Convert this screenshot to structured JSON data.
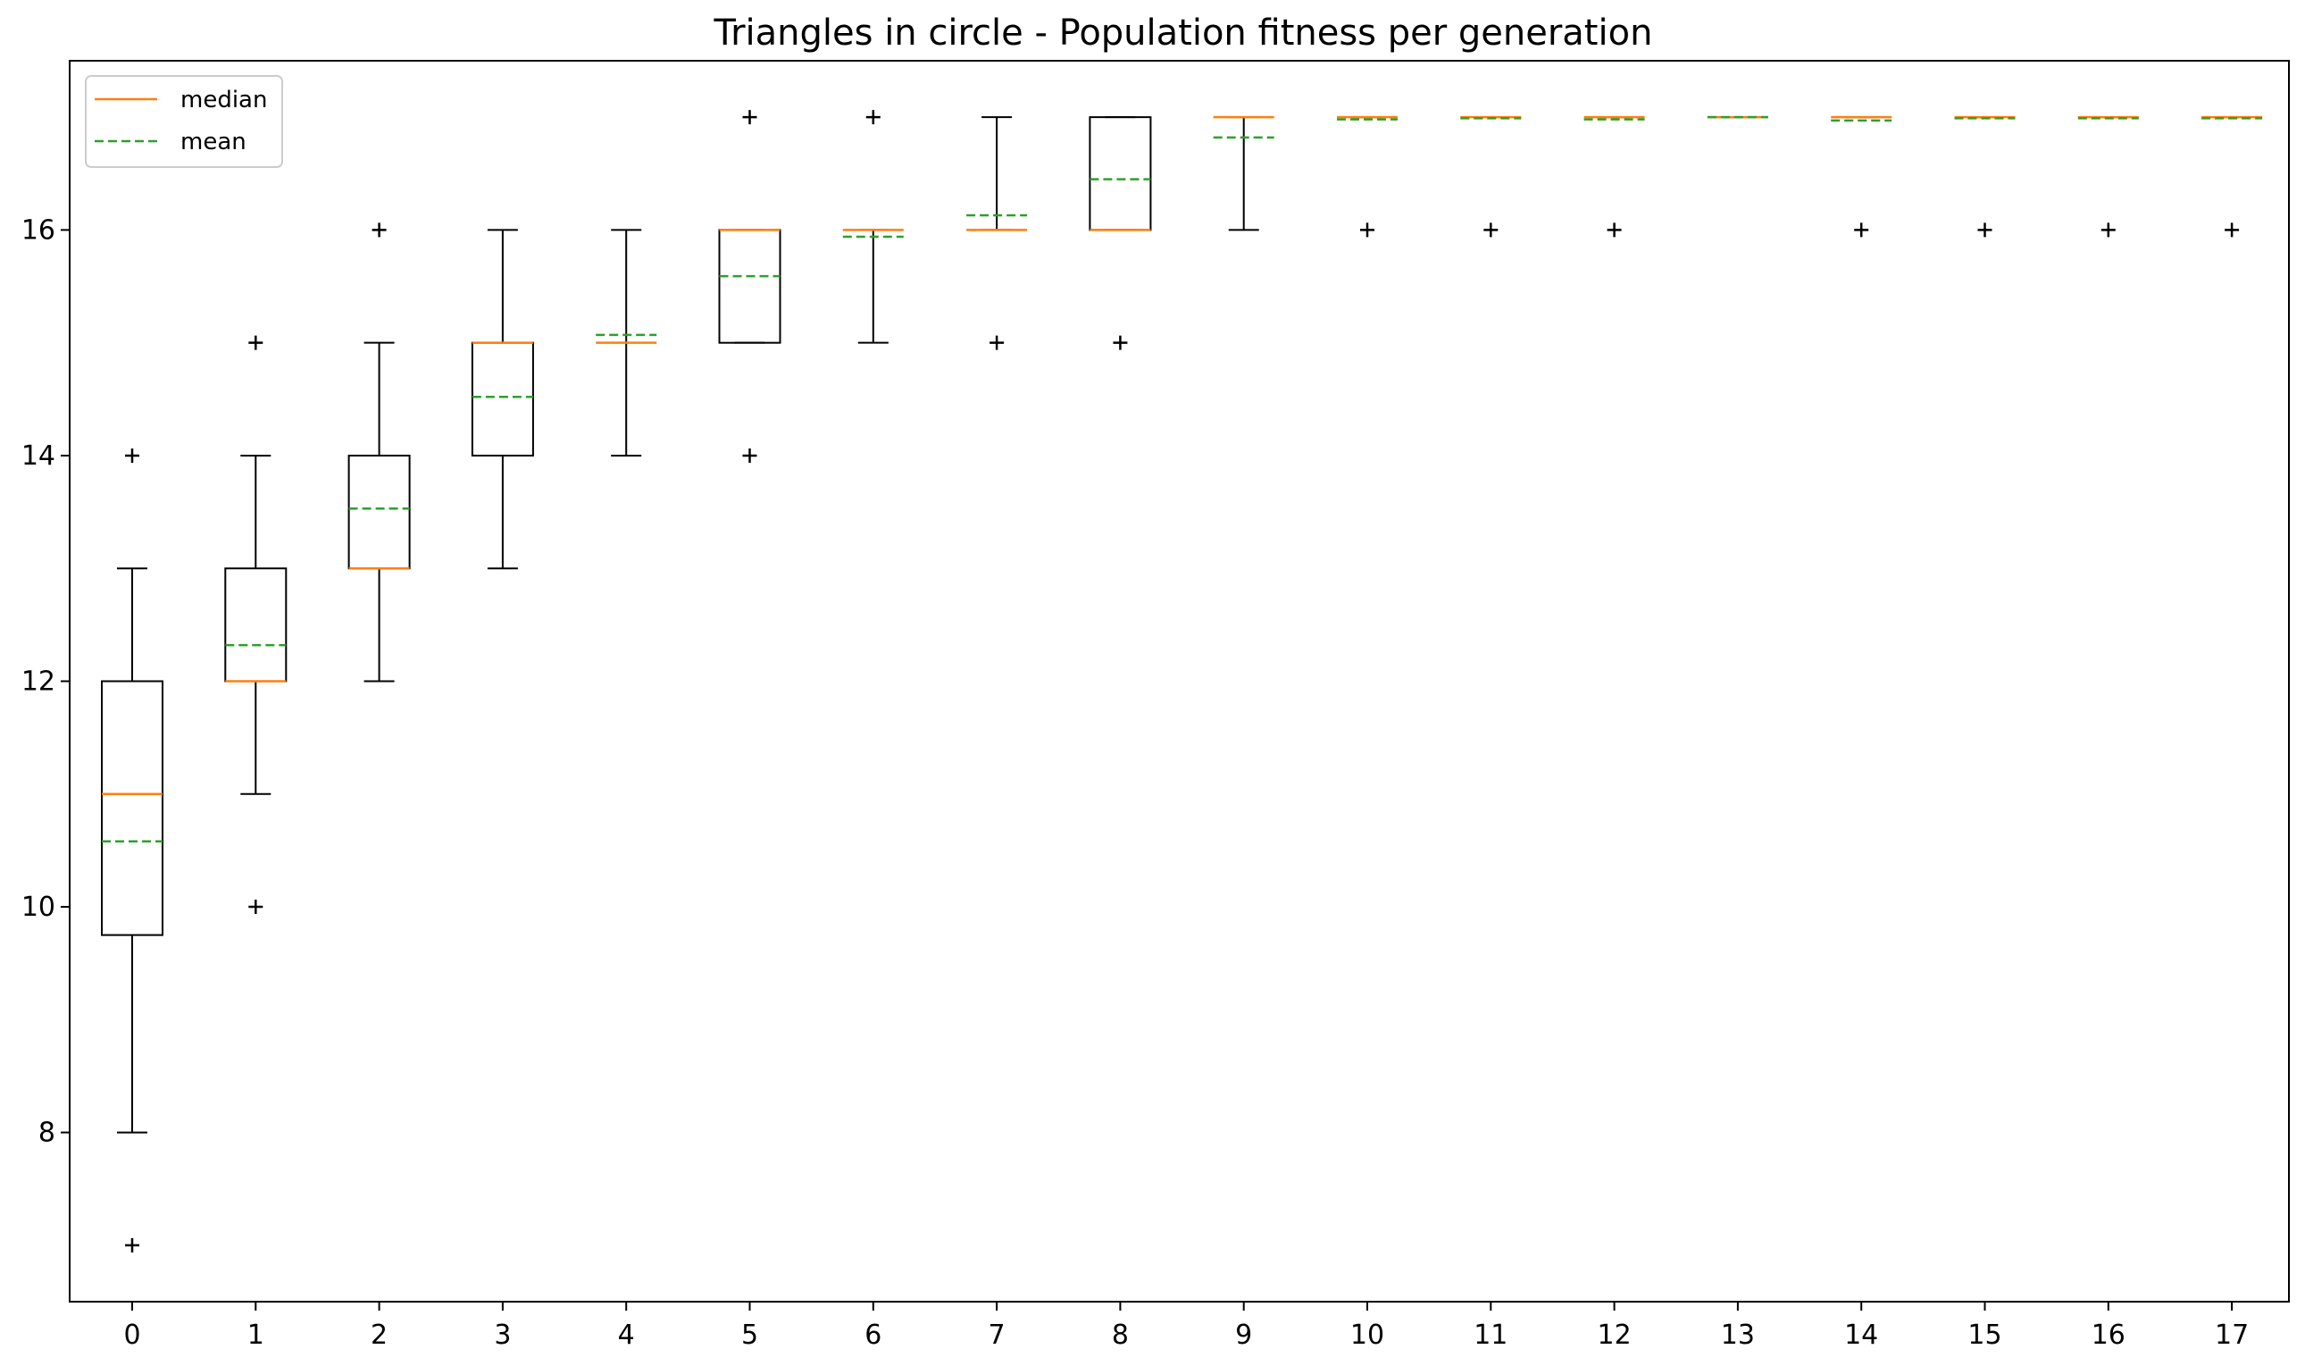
{
  "chart_data": {
    "type": "box",
    "title": "Triangles in circle - Population fitness per generation",
    "xlabel": "",
    "ylabel": "",
    "ylim": [
      6.5,
      17.5
    ],
    "yticks": [
      8,
      10,
      12,
      14,
      16
    ],
    "grid": false,
    "legend_position": "top-left",
    "legend": [
      {
        "label": "median",
        "style": "solid",
        "color": "#ff7f0e"
      },
      {
        "label": "mean",
        "style": "dashed",
        "color": "#2ca02c"
      }
    ],
    "colors": {
      "box": "#000000",
      "median": "#ff7f0e",
      "mean": "#2ca02c",
      "flier": "#000000"
    },
    "categories": [
      "0",
      "1",
      "2",
      "3",
      "4",
      "5",
      "6",
      "7",
      "8",
      "9",
      "10",
      "11",
      "12",
      "13",
      "14",
      "15",
      "16",
      "17"
    ],
    "boxes": [
      {
        "q1": 9.75,
        "median": 11,
        "q3": 12,
        "whislo": 8,
        "whishi": 13,
        "mean": 10.58,
        "fliers": [
          7,
          14
        ]
      },
      {
        "q1": 12,
        "median": 12,
        "q3": 13,
        "whislo": 11,
        "whishi": 14,
        "mean": 12.32,
        "fliers": [
          10,
          15
        ]
      },
      {
        "q1": 13,
        "median": 13,
        "q3": 14,
        "whislo": 12,
        "whishi": 15,
        "mean": 13.53,
        "fliers": [
          16
        ]
      },
      {
        "q1": 14,
        "median": 15,
        "q3": 15,
        "whislo": 13,
        "whishi": 16,
        "mean": 14.52,
        "fliers": []
      },
      {
        "q1": 15,
        "median": 15,
        "q3": 15,
        "whislo": 14,
        "whishi": 16,
        "mean": 15.07,
        "fliers": []
      },
      {
        "q1": 15,
        "median": 16,
        "q3": 16,
        "whislo": 15,
        "whishi": 16,
        "mean": 15.59,
        "fliers": [
          14,
          17
        ]
      },
      {
        "q1": 16,
        "median": 16,
        "q3": 16,
        "whislo": 15,
        "whishi": 16,
        "mean": 15.94,
        "fliers": [
          17
        ]
      },
      {
        "q1": 16,
        "median": 16,
        "q3": 16,
        "whislo": 16,
        "whishi": 17,
        "mean": 16.13,
        "fliers": [
          15
        ]
      },
      {
        "q1": 16,
        "median": 16,
        "q3": 17,
        "whislo": 16,
        "whishi": 17,
        "mean": 16.45,
        "fliers": [
          15
        ]
      },
      {
        "q1": 17,
        "median": 17,
        "q3": 17,
        "whislo": 16,
        "whishi": 17,
        "mean": 16.82,
        "fliers": []
      },
      {
        "q1": 17,
        "median": 17,
        "q3": 17,
        "whislo": 17,
        "whishi": 17,
        "mean": 16.98,
        "fliers": [
          16
        ]
      },
      {
        "q1": 17,
        "median": 17,
        "q3": 17,
        "whislo": 17,
        "whishi": 17,
        "mean": 16.99,
        "fliers": [
          16
        ]
      },
      {
        "q1": 17,
        "median": 17,
        "q3": 17,
        "whislo": 17,
        "whishi": 17,
        "mean": 16.98,
        "fliers": [
          16
        ]
      },
      {
        "q1": 17,
        "median": 17,
        "q3": 17,
        "whislo": 17,
        "whishi": 17,
        "mean": 17.0,
        "fliers": []
      },
      {
        "q1": 17,
        "median": 17,
        "q3": 17,
        "whislo": 17,
        "whishi": 17,
        "mean": 16.97,
        "fliers": [
          16
        ]
      },
      {
        "q1": 17,
        "median": 17,
        "q3": 17,
        "whislo": 17,
        "whishi": 17,
        "mean": 16.99,
        "fliers": [
          16
        ]
      },
      {
        "q1": 17,
        "median": 17,
        "q3": 17,
        "whislo": 17,
        "whishi": 17,
        "mean": 16.99,
        "fliers": [
          16
        ]
      },
      {
        "q1": 17,
        "median": 17,
        "q3": 17,
        "whislo": 17,
        "whishi": 17,
        "mean": 16.99,
        "fliers": [
          16
        ]
      }
    ]
  }
}
